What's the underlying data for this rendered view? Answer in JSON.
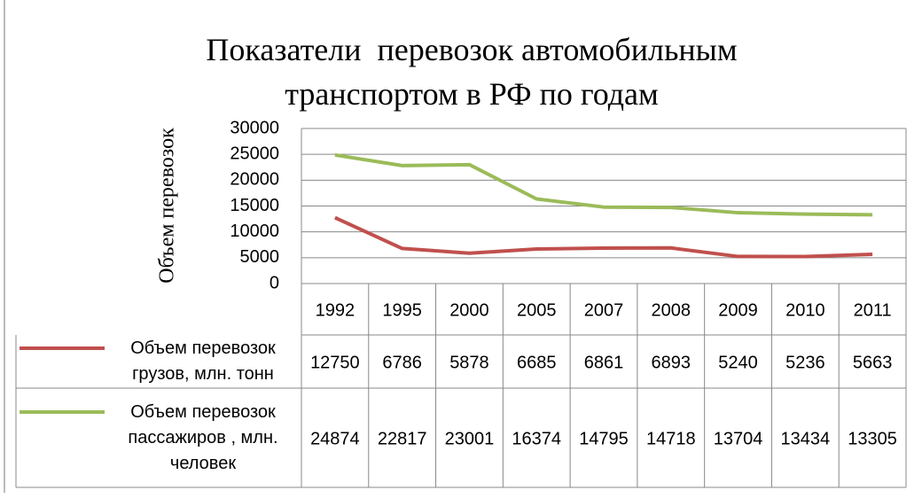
{
  "chart_data": {
    "type": "line",
    "title": "Показатели  перевозок автомобильным транспортом в РФ по годам",
    "y_label": "Объем перевозок",
    "categories": [
      "1992",
      "1995",
      "2000",
      "2005",
      "2007",
      "2008",
      "2009",
      "2010",
      "2011"
    ],
    "series": [
      {
        "name": "Объем перевозок грузов, млн. тонн",
        "color": "#c0504d",
        "values": [
          12750,
          6786,
          5878,
          6685,
          6861,
          6893,
          5240,
          5236,
          5663
        ]
      },
      {
        "name": "Объем перевозок пассажиров , млн. человек",
        "color": "#9bbb59",
        "values": [
          24874,
          22817,
          23001,
          16374,
          14795,
          14718,
          13704,
          13434,
          13305
        ]
      }
    ],
    "ylim": [
      0,
      30000
    ],
    "yticks": [
      0,
      5000,
      10000,
      15000,
      20000,
      25000,
      30000
    ],
    "grid": true,
    "data_table": true
  }
}
